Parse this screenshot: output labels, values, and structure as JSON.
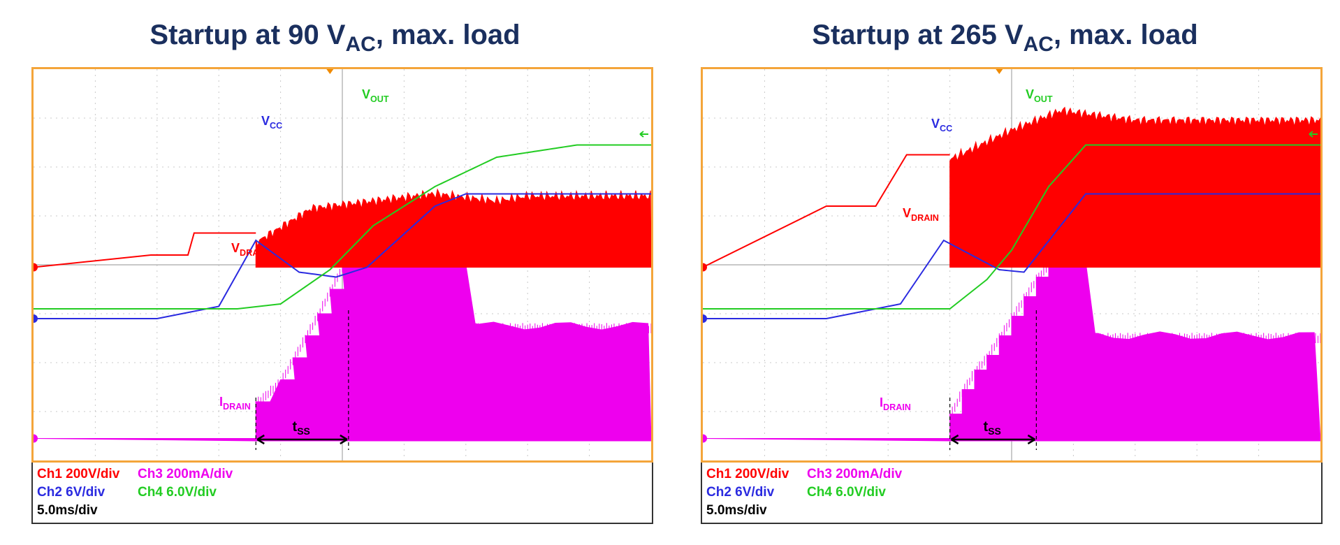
{
  "chart_data": [
    {
      "type": "line",
      "title": {
        "prefix": "Startup at 90 V",
        "sub": "AC",
        "suffix": ", max. load"
      },
      "grid": true,
      "trace_labels": {
        "vout": {
          "main": "V",
          "sub": "OUT"
        },
        "vcc": {
          "main": "V",
          "sub": "CC"
        },
        "vdrain": {
          "main": "V",
          "sub": "DRAIN"
        },
        "idrain": {
          "main": "I",
          "sub": "DRAIN"
        },
        "tss": {
          "main": "t",
          "sub": "SS"
        }
      },
      "legend": {
        "ch1": "Ch1 200V/div",
        "ch3": "Ch3 200mA/div",
        "ch2": "Ch2 6V/div",
        "ch4": "Ch4 6.0V/div",
        "timebase": "5.0ms/div"
      },
      "colors": {
        "ch1": "#ff0000",
        "ch2": "#2a2ae0",
        "ch3": "#ee00ee",
        "ch4": "#22cc22",
        "frame": "#f4a53a",
        "title": "#1a2f5e"
      },
      "series": [
        {
          "name": "VOUT",
          "channel": "ch4",
          "x": [
            0,
            3.3,
            4.0,
            4.8,
            5.5,
            6.5,
            7.5,
            8.8,
            10
          ],
          "y": [
            0.2,
            0.2,
            0.3,
            1.0,
            1.9,
            2.7,
            3.3,
            3.55,
            3.55
          ]
        },
        {
          "name": "VCC",
          "channel": "ch2",
          "x": [
            0,
            2.0,
            3.0,
            3.6,
            4.3,
            4.9,
            5.4,
            6.5,
            7.0,
            10
          ],
          "y": [
            0.0,
            0.0,
            0.25,
            1.6,
            0.95,
            0.85,
            1.05,
            2.3,
            2.55,
            2.55
          ]
        },
        {
          "name": "VDRAIN",
          "channel": "ch1",
          "start_ms": 3.6,
          "level": [
            0,
            0.25,
            0.25,
            0.7,
            0.7
          ],
          "level_x": [
            0,
            1.9,
            2.5,
            2.6,
            3.6
          ],
          "burst_x": [
            3.6,
            4.5,
            6.5,
            7.5,
            8.0,
            10
          ],
          "burst_env": [
            0.5,
            1.2,
            1.5,
            1.35,
            1.45,
            1.45
          ]
        },
        {
          "name": "IDRAIN",
          "channel": "ch3",
          "start_ms": 3.6,
          "ramp_steps": 10,
          "step_x": [
            3.6,
            4.0,
            4.2,
            4.4,
            4.6,
            4.8,
            5.0
          ],
          "step_y": [
            0.75,
            1.2,
            1.65,
            2.1,
            2.55,
            3.05,
            3.55
          ],
          "plateau_end_ms": 7.0,
          "settle": 2.3
        }
      ],
      "annotations": {
        "tss_start_ms": 3.6,
        "tss_end_ms": 5.1
      }
    },
    {
      "type": "line",
      "title": {
        "prefix": "Startup at 265 V",
        "sub": "AC",
        "suffix": ", max. load"
      },
      "grid": true,
      "trace_labels": {
        "vout": {
          "main": "V",
          "sub": "OUT"
        },
        "vcc": {
          "main": "V",
          "sub": "CC"
        },
        "vdrain": {
          "main": "V",
          "sub": "DRAIN"
        },
        "idrain": {
          "main": "I",
          "sub": "DRAIN"
        },
        "tss": {
          "main": "t",
          "sub": "SS"
        }
      },
      "legend": {
        "ch1": "Ch1 200V/div",
        "ch3": "Ch3 200mA/div",
        "ch2": "Ch2 6V/div",
        "ch4": "Ch4 6.0V/div",
        "timebase": "5.0ms/div"
      },
      "colors": {
        "ch1": "#ff0000",
        "ch2": "#2a2ae0",
        "ch3": "#ee00ee",
        "ch4": "#22cc22",
        "frame": "#f4a53a",
        "title": "#1a2f5e"
      },
      "series": [
        {
          "name": "VOUT",
          "channel": "ch4",
          "x": [
            0,
            4.0,
            4.6,
            5.0,
            5.6,
            6.2,
            10
          ],
          "y": [
            0.2,
            0.2,
            0.8,
            1.4,
            2.7,
            3.55,
            3.55
          ]
        },
        {
          "name": "VCC",
          "channel": "ch2",
          "x": [
            0,
            2.0,
            3.2,
            3.9,
            4.8,
            5.2,
            6.2,
            10
          ],
          "y": [
            0.0,
            0.0,
            0.3,
            1.6,
            1.0,
            0.95,
            2.55,
            2.55
          ]
        },
        {
          "name": "VDRAIN",
          "channel": "ch1",
          "start_ms": 4.0,
          "level": [
            0,
            1.25,
            1.25,
            2.3,
            2.3
          ],
          "level_x": [
            0,
            2.0,
            2.8,
            3.3,
            4.0
          ],
          "burst_x": [
            4.0,
            5.0,
            5.8,
            7.0,
            10
          ],
          "burst_env": [
            2.2,
            2.8,
            3.2,
            3.0,
            3.0
          ]
        },
        {
          "name": "IDRAIN",
          "channel": "ch3",
          "start_ms": 4.0,
          "ramp_steps": 16,
          "step_x": [
            4.0,
            4.2,
            4.4,
            4.6,
            4.8,
            5.0,
            5.2,
            5.4,
            5.6
          ],
          "step_y": [
            0.5,
            1.0,
            1.4,
            1.7,
            2.1,
            2.5,
            2.9,
            3.3,
            3.6
          ],
          "plateau_end_ms": 6.2,
          "settle": 2.1
        }
      ],
      "annotations": {
        "tss_start_ms": 4.0,
        "tss_end_ms": 5.4
      }
    }
  ]
}
